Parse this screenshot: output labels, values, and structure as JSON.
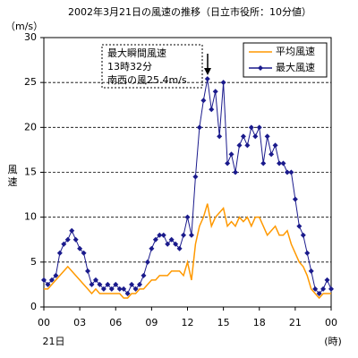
{
  "chart_data": {
    "type": "line",
    "title": "2002年3月21日の風速の推移（日立市役所：10分値）",
    "y_unit": "（m/s）",
    "ylabel": "風速",
    "x_sublabel": "21日",
    "x_unit": "(時)",
    "annotation": [
      "最大瞬間風速",
      "13時32分",
      "南西の風25.4m/s"
    ],
    "x": [
      0,
      20,
      40,
      60,
      80,
      100,
      120,
      140,
      160,
      180,
      200,
      220,
      240,
      260,
      280,
      300,
      320,
      340,
      360,
      380,
      400,
      420,
      440,
      460,
      480,
      500,
      520,
      540,
      560,
      580,
      600,
      620,
      640,
      660,
      680,
      700,
      720,
      740,
      760,
      780,
      800,
      820,
      840,
      860,
      880,
      900,
      920,
      940,
      960,
      980,
      1000,
      1020,
      1040,
      1060,
      1080,
      1100,
      1120,
      1140,
      1160,
      1180,
      1200,
      1220,
      1240,
      1260,
      1280,
      1300,
      1320,
      1340,
      1360,
      1380,
      1400,
      1420,
      1440
    ],
    "series": [
      {
        "name": "平均風速",
        "color": "#ff9900",
        "marker": false,
        "values": [
          2,
          2,
          2.5,
          3,
          3.5,
          4,
          4.5,
          4,
          3.5,
          3,
          2.5,
          2,
          1.5,
          2,
          1.5,
          1.5,
          1.5,
          1.5,
          1.5,
          1.5,
          1,
          1,
          1.5,
          1.5,
          2,
          2,
          2.5,
          3,
          3,
          3.5,
          3.5,
          3.5,
          4,
          4,
          4,
          3.5,
          5,
          3,
          7,
          9,
          10,
          11.5,
          9,
          10,
          10.5,
          11,
          9,
          9.5,
          9,
          10,
          9.5,
          10,
          9,
          10,
          10,
          9,
          8,
          8.5,
          9,
          8,
          8,
          8.5,
          7,
          6,
          5,
          4.5,
          3.5,
          2,
          1.5,
          1,
          1.5,
          1.5,
          1.5
        ]
      },
      {
        "name": "最大風速",
        "color": "#1a1a8c",
        "marker": true,
        "values": [
          3,
          2.5,
          3,
          3.5,
          6,
          7,
          7.5,
          8.5,
          7.5,
          6.5,
          6,
          4,
          2.5,
          3,
          2.5,
          2,
          2.5,
          2,
          2.5,
          2,
          2,
          1.5,
          2.5,
          2,
          2.5,
          3.5,
          5,
          6.5,
          7.5,
          8,
          8,
          7,
          7.5,
          7,
          6.5,
          8,
          10,
          8,
          14.5,
          20,
          23,
          25.4,
          22,
          24,
          19,
          25,
          16,
          17,
          15,
          18,
          19,
          18,
          20,
          19,
          20,
          16,
          19,
          17,
          18,
          16,
          16,
          15,
          15,
          12,
          9,
          8,
          6,
          4,
          2,
          1.5,
          2,
          3,
          2
        ]
      }
    ],
    "xlim": [
      0,
      1440
    ],
    "xticks": [
      {
        "value": 0,
        "label": "00"
      },
      {
        "value": 180,
        "label": "03"
      },
      {
        "value": 360,
        "label": "06"
      },
      {
        "value": 540,
        "label": "09"
      },
      {
        "value": 720,
        "label": "12"
      },
      {
        "value": 900,
        "label": "15"
      },
      {
        "value": 1080,
        "label": "18"
      },
      {
        "value": 1260,
        "label": "21"
      },
      {
        "value": 1440,
        "label": "00"
      }
    ],
    "ylim": [
      0,
      30
    ],
    "yticks": [
      0,
      5,
      10,
      15,
      20,
      25,
      30
    ],
    "grid": true,
    "legend": "top-right"
  }
}
